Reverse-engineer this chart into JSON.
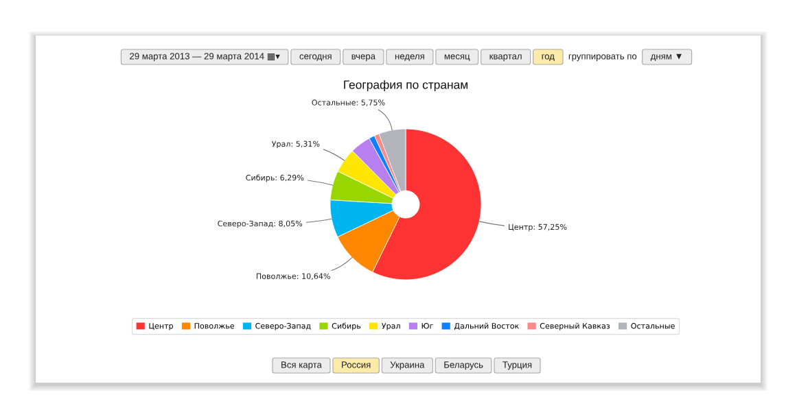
{
  "chart_data": [
    {
      "type": "other",
      "annotations": [
        "29 марта 2013 — 29 марта 2014 ▦▾",
        "сегодня",
        "вчера",
        "неделя",
        "месяц",
        "квартал",
        "год",
        "группировать по",
        "дням ▼"
      ],
      "colors": [
        "#ececec",
        "#ececec",
        "#ececec",
        "#ececec",
        "#ececec",
        "#ececec",
        "#fbeaa8",
        null,
        "#ececec"
      ]
    },
    {
      "type": "donut",
      "title": "География по странам",
      "categories": [
        "Центр",
        "Поволжье",
        "Северо-Запад",
        "Сибирь",
        "Урал",
        "Юг",
        "Дальний Восток",
        "Северный Кавказ",
        "Остальные"
      ],
      "values": [
        57.25,
        10.64,
        8.05,
        6.29,
        5.31,
        4.41,
        1.25,
        1.05,
        5.75
      ],
      "colors": [
        "#ff3333",
        "#ff8800",
        "#00b4f0",
        "#99d600",
        "#ffe600",
        "#b77ff0",
        "#0f80ff",
        "#ff8888",
        "#b3b3bb"
      ],
      "value_labels": [
        "Центр: 57,25%",
        "Поволжье: 10,64%",
        "Северо-Запад: 8,05%",
        "Сибирь: 6,29%",
        "Урал: 5,31%",
        null,
        null,
        null,
        "Остальные: 5,75%"
      ],
      "legend": "bottom"
    },
    {
      "type": "other",
      "annotations": [
        "Вся карта",
        "Россия",
        "Украина",
        "Беларусь",
        "Турция"
      ],
      "colors": [
        "#ececec",
        "#fbeaa8",
        "#ececec",
        "#ececec",
        "#ececec"
      ]
    }
  ]
}
